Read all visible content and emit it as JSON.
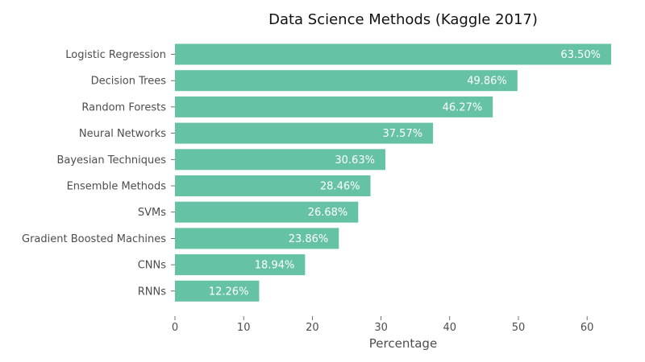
{
  "chart_data": {
    "type": "bar",
    "orientation": "horizontal",
    "title": "Data Science Methods (Kaggle 2017)",
    "xlabel": "Percentage",
    "ylabel": "",
    "xlim": [
      0,
      63.5
    ],
    "xticks": [
      0,
      10,
      20,
      30,
      40,
      50,
      60
    ],
    "categories": [
      "Logistic Regression",
      "Decision Trees",
      "Random Forests",
      "Neural Networks",
      "Bayesian Techniques",
      "Ensemble Methods",
      "SVMs",
      "Gradient Boosted Machines",
      "CNNs",
      "RNNs"
    ],
    "values": [
      63.5,
      49.86,
      46.27,
      37.57,
      30.63,
      28.46,
      26.68,
      23.86,
      18.94,
      12.26
    ],
    "value_labels": [
      "63.50%",
      "49.86%",
      "46.27%",
      "37.57%",
      "30.63%",
      "28.46%",
      "26.68%",
      "23.86%",
      "18.94%",
      "12.26%"
    ],
    "grid": false,
    "bar_color": "#66c2a5",
    "value_label_color": "#ffffff"
  }
}
